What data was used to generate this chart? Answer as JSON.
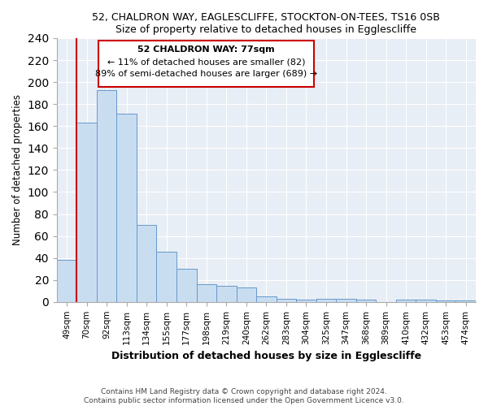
{
  "title1": "52, CHALDRON WAY, EAGLESCLIFFE, STOCKTON-ON-TEES, TS16 0SB",
  "title2": "Size of property relative to detached houses in Egglescliffe",
  "xlabel": "Distribution of detached houses by size in Egglescliffe",
  "ylabel": "Number of detached properties",
  "bar_labels": [
    "49sqm",
    "70sqm",
    "92sqm",
    "113sqm",
    "134sqm",
    "155sqm",
    "177sqm",
    "198sqm",
    "219sqm",
    "240sqm",
    "262sqm",
    "283sqm",
    "304sqm",
    "325sqm",
    "347sqm",
    "368sqm",
    "389sqm",
    "410sqm",
    "432sqm",
    "453sqm",
    "474sqm"
  ],
  "bar_values": [
    38,
    163,
    193,
    171,
    70,
    46,
    30,
    16,
    15,
    13,
    5,
    3,
    2,
    3,
    3,
    2,
    0,
    2,
    2,
    1,
    1
  ],
  "bar_color": "#c9ddf0",
  "bar_edge_color": "#6699cc",
  "vline_x": 0.5,
  "vline_color": "#cc0000",
  "annotation_title": "52 CHALDRON WAY: 77sqm",
  "annotation_line1": "← 11% of detached houses are smaller (82)",
  "annotation_line2": "89% of semi-detached houses are larger (689) →",
  "box_edge_color": "#cc0000",
  "ylim": [
    0,
    240
  ],
  "yticks": [
    0,
    20,
    40,
    60,
    80,
    100,
    120,
    140,
    160,
    180,
    200,
    220,
    240
  ],
  "footer1": "Contains HM Land Registry data © Crown copyright and database right 2024.",
  "footer2": "Contains public sector information licensed under the Open Government Licence v3.0.",
  "bg_color": "#e8eef5"
}
